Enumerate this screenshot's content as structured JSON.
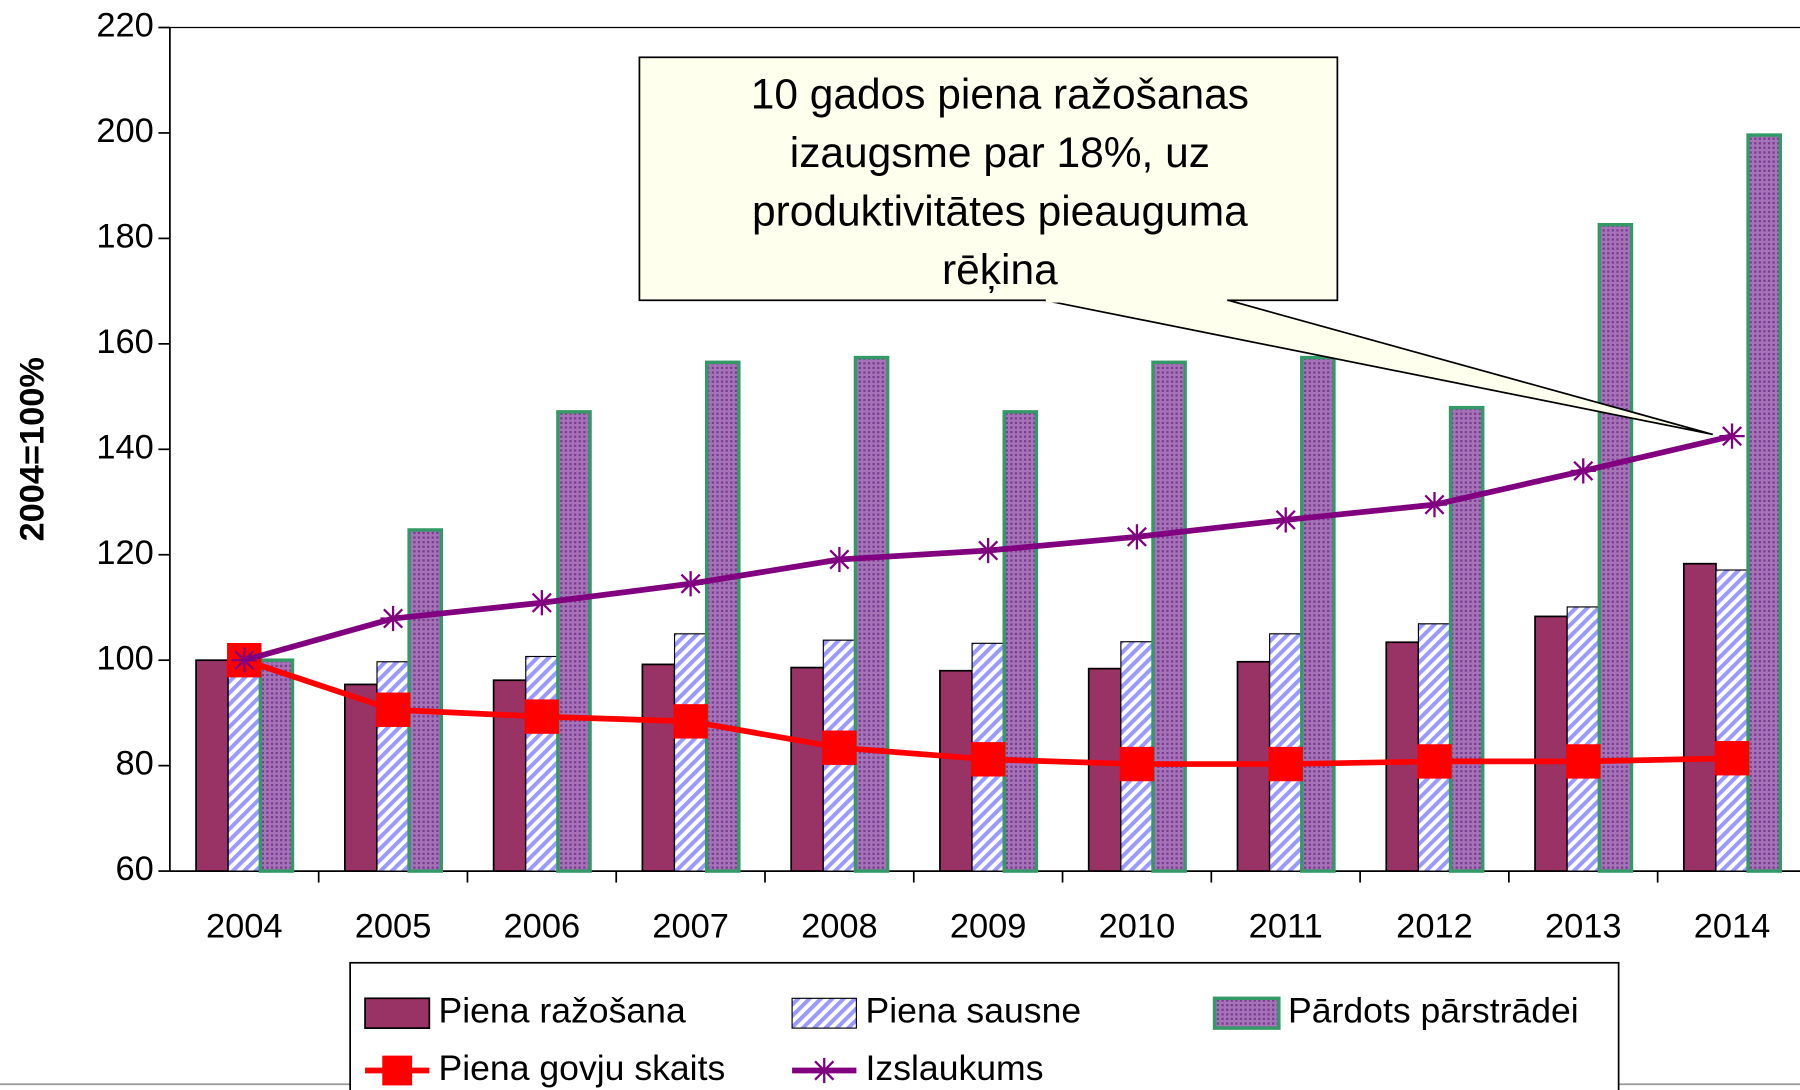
{
  "chart_data": {
    "type": "bar",
    "ylabel": "2004=100%",
    "annotation": [
      "10 gados  piena ražošanas",
      "izaugsme par 18%, uz",
      "produktivitātes pieauguma",
      "rēķina"
    ],
    "categories": [
      "2004",
      "2005",
      "2006",
      "2007",
      "2008",
      "2009",
      "2010",
      "2011",
      "2012",
      "2013",
      "2014"
    ],
    "ylim": [
      60,
      220
    ],
    "yticks": [
      60,
      80,
      100,
      120,
      140,
      160,
      180,
      200,
      220
    ],
    "series": [
      {
        "name": "Piena ražošana",
        "type": "bar",
        "color": "#993366",
        "values": [
          100,
          95.4,
          96.2,
          99.2,
          98.6,
          98,
          98.4,
          99.7,
          103.4,
          108.3,
          118.3
        ]
      },
      {
        "name": "Piena sausne",
        "type": "bar",
        "color": "#9999ff",
        "values": [
          100,
          99.7,
          100.7,
          105,
          103.8,
          103.2,
          103.5,
          105,
          106.9,
          110.1,
          117.1
        ]
      },
      {
        "name": "Pārdots pārstrādei",
        "type": "bar",
        "color": "#9966aa",
        "values": [
          100,
          124.7,
          147.1,
          156.5,
          157.4,
          147.1,
          156.5,
          157.4,
          147.9,
          182.6,
          199.6
        ]
      },
      {
        "name": "Piena govju skaits",
        "type": "line",
        "color": "#ff0000",
        "values": [
          100,
          90.6,
          89.3,
          88.4,
          83.4,
          81.2,
          80.3,
          80.3,
          80.8,
          80.8,
          81.4
        ]
      },
      {
        "name": "Izslaukums",
        "type": "line",
        "color": "#800080",
        "values": [
          100,
          107.9,
          110.9,
          114.5,
          119.1,
          120.8,
          123.4,
          126.6,
          129.5,
          135.9,
          142.5
        ]
      }
    ]
  }
}
